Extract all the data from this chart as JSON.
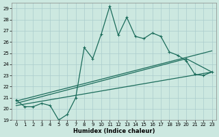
{
  "xlabel": "Humidex (Indice chaleur)",
  "xlim": [
    -0.5,
    23.5
  ],
  "ylim": [
    19,
    29.5
  ],
  "xticks": [
    0,
    1,
    2,
    3,
    4,
    5,
    6,
    7,
    8,
    9,
    10,
    11,
    12,
    13,
    14,
    15,
    16,
    17,
    18,
    19,
    20,
    21,
    22,
    23
  ],
  "yticks": [
    19,
    20,
    21,
    22,
    23,
    24,
    25,
    26,
    27,
    28,
    29
  ],
  "bg_color": "#cce8e0",
  "line_color": "#1a6b5a",
  "grid_color": "#aacccc",
  "line1_x": [
    0,
    1,
    2,
    3,
    4,
    5,
    6,
    7,
    8,
    9,
    10,
    11,
    12,
    13,
    14,
    15,
    16,
    17,
    18,
    19,
    20,
    21,
    22,
    23
  ],
  "line1_y": [
    20.8,
    20.2,
    20.2,
    20.5,
    20.3,
    19.0,
    19.5,
    21.0,
    25.5,
    24.5,
    26.7,
    29.2,
    26.6,
    28.2,
    26.5,
    26.3,
    26.8,
    26.5,
    25.1,
    24.8,
    24.3,
    23.1,
    23.0,
    23.3
  ],
  "line2_x": [
    0,
    23
  ],
  "line2_y": [
    20.7,
    25.2
  ],
  "line3_x": [
    0,
    20,
    23
  ],
  "line3_y": [
    20.5,
    24.5,
    23.3
  ],
  "line4_x": [
    0,
    23
  ],
  "line4_y": [
    20.3,
    23.3
  ]
}
